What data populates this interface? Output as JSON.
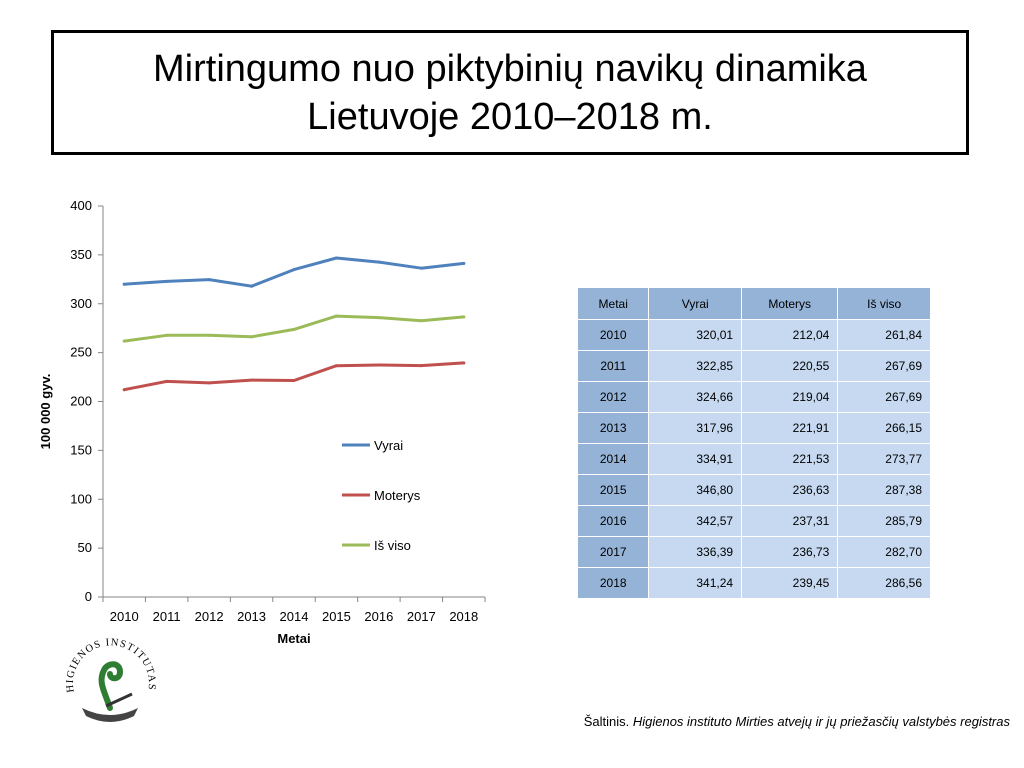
{
  "title": {
    "line1": "Mirtingumo nuo piktybinių navikų dinamika",
    "line2": "Lietuvoje 2010–2018 m."
  },
  "chart_data": {
    "type": "line",
    "x": [
      "2010",
      "2011",
      "2012",
      "2013",
      "2014",
      "2015",
      "2016",
      "2017",
      "2018"
    ],
    "series": [
      {
        "name": "Vyrai",
        "color": "#4f81bd",
        "values": [
          320.01,
          322.85,
          324.66,
          317.96,
          334.91,
          346.8,
          342.57,
          336.39,
          341.24
        ]
      },
      {
        "name": "Moterys",
        "color": "#c0504d",
        "values": [
          212.04,
          220.55,
          219.04,
          221.91,
          221.53,
          236.63,
          237.31,
          236.73,
          239.45
        ]
      },
      {
        "name": "Iš viso",
        "color": "#9bbb59",
        "values": [
          261.84,
          267.69,
          267.69,
          266.15,
          273.77,
          287.38,
          285.79,
          282.7,
          286.56
        ]
      }
    ],
    "xlabel": "Metai",
    "ylabel": "100 000 gyv.",
    "ylim": [
      0,
      400
    ],
    "yticks": [
      0,
      50,
      100,
      150,
      200,
      250,
      300,
      350,
      400
    ],
    "grid": false,
    "legend": "right"
  },
  "table": {
    "headers": [
      "Metai",
      "Vyrai",
      "Moterys",
      "Iš viso"
    ],
    "rows": [
      [
        "2010",
        "320,01",
        "212,04",
        "261,84"
      ],
      [
        "2011",
        "322,85",
        "220,55",
        "267,69"
      ],
      [
        "2012",
        "324,66",
        "219,04",
        "267,69"
      ],
      [
        "2013",
        "317,96",
        "221,91",
        "266,15"
      ],
      [
        "2014",
        "334,91",
        "221,53",
        "273,77"
      ],
      [
        "2015",
        "346,80",
        "236,63",
        "287,38"
      ],
      [
        "2016",
        "342,57",
        "237,31",
        "285,79"
      ],
      [
        "2017",
        "336,39",
        "236,73",
        "282,70"
      ],
      [
        "2018",
        "341,24",
        "239,45",
        "286,56"
      ]
    ]
  },
  "logo": {
    "text": "HIGIENOS INSTITUTAS",
    "icon": "higienos-instituto-logo"
  },
  "source": {
    "prefix": "Šaltinis. ",
    "italic": "Higienos instituto  Mirties atvejų ir jų priežasčių valstybės registras"
  }
}
